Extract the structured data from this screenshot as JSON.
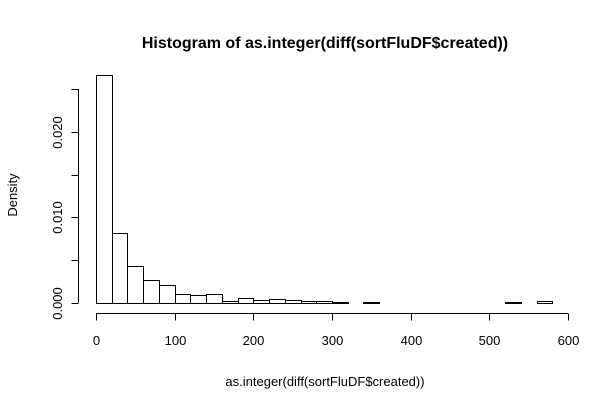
{
  "chart_data": {
    "type": "bar",
    "title": "Histogram of as.integer(diff(sortFluDF$created))",
    "xlabel": "as.integer(diff(sortFluDF$created))",
    "ylabel": "Density",
    "xlim": [
      0,
      600
    ],
    "ylim": [
      0,
      0.027
    ],
    "xticks": [
      0,
      100,
      200,
      300,
      400,
      500,
      600
    ],
    "xtick_labels": [
      "0",
      "100",
      "200",
      "300",
      "400",
      "500",
      "600"
    ],
    "yticks": [
      0,
      0.005,
      0.01,
      0.015,
      0.02,
      0.025
    ],
    "ytick_labels": [
      "0.000",
      "",
      "0.010",
      "",
      "0.020",
      ""
    ],
    "bin_width": 20,
    "bin_starts": [
      0,
      20,
      40,
      60,
      80,
      100,
      120,
      140,
      160,
      180,
      200,
      220,
      240,
      260,
      280,
      300,
      320,
      340,
      360,
      380,
      400,
      420,
      440,
      460,
      480,
      500,
      520,
      540,
      560
    ],
    "values": [
      0.0267,
      0.0082,
      0.0043,
      0.0027,
      0.0021,
      0.0011,
      0.0009,
      0.0011,
      0.0002,
      0.0006,
      0.0003,
      0.0005,
      0.0004,
      0.0002,
      0.0002,
      0.0001,
      0.0,
      0.0001,
      0.0,
      0.0,
      0.0,
      0.0,
      0.0,
      0.0,
      0.0,
      0.0,
      0.0001,
      0.0,
      0.0002
    ],
    "grid": false,
    "legend": "none",
    "bar_fill": "#ffffff",
    "bar_stroke": "#000000"
  }
}
